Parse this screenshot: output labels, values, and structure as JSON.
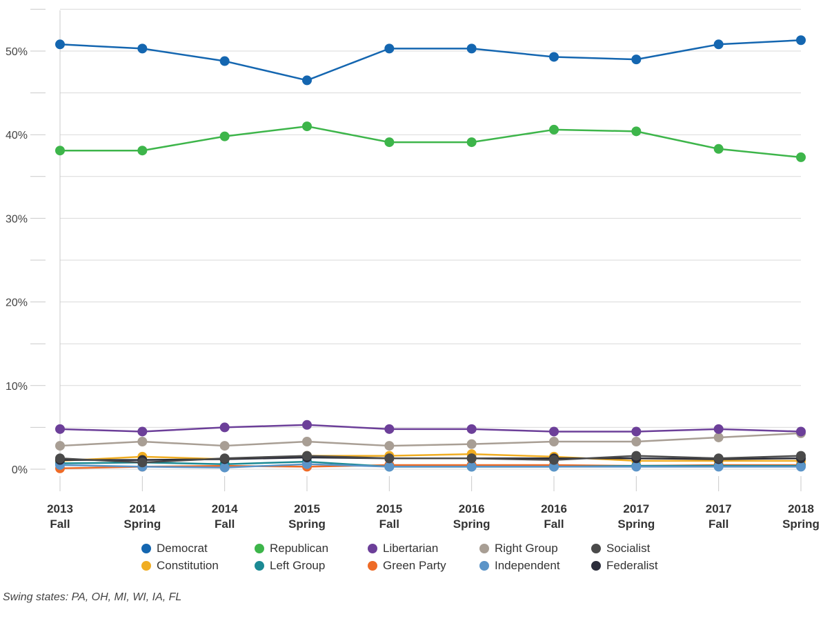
{
  "chart_data": {
    "type": "line",
    "categories": [
      [
        "2013",
        "Fall"
      ],
      [
        "2014",
        "Spring"
      ],
      [
        "2014",
        "Fall"
      ],
      [
        "2015",
        "Spring"
      ],
      [
        "2015",
        "Fall"
      ],
      [
        "2016",
        "Spring"
      ],
      [
        "2016",
        "Fall"
      ],
      [
        "2017",
        "Spring"
      ],
      [
        "2017",
        "Fall"
      ],
      [
        "2018",
        "Spring"
      ]
    ],
    "ylim": [
      0,
      55
    ],
    "y_ticks": [
      0,
      10,
      20,
      30,
      40,
      50
    ],
    "y_tick_labels": [
      "0%",
      "10%",
      "20%",
      "30%",
      "40%",
      "50%"
    ],
    "grid": "horizontal",
    "legend_position": "bottom",
    "series": [
      {
        "name": "Right Group",
        "color": "#a89e94",
        "values": [
          2.8,
          3.3,
          2.8,
          3.3,
          2.8,
          3.0,
          3.3,
          3.3,
          3.8,
          4.3
        ]
      },
      {
        "name": "Constitution",
        "color": "#f0ad22",
        "values": [
          1.0,
          1.5,
          1.2,
          1.6,
          1.6,
          1.8,
          1.5,
          1.0,
          1.0,
          1.0
        ]
      },
      {
        "name": "Green Party",
        "color": "#ee6b27",
        "values": [
          0.1,
          0.3,
          0.4,
          0.3,
          0.5,
          0.5,
          0.5,
          0.4,
          0.5,
          0.5
        ]
      },
      {
        "name": "Left Group",
        "color": "#1b8a94",
        "values": [
          0.7,
          0.8,
          0.6,
          0.9,
          0.3,
          0.3,
          0.3,
          0.4,
          0.4,
          0.4
        ]
      },
      {
        "name": "Independent",
        "color": "#5b94c8",
        "values": [
          0.5,
          0.3,
          0.2,
          0.6,
          0.3,
          0.3,
          0.3,
          0.3,
          0.3,
          0.3
        ]
      },
      {
        "name": "Federalist",
        "color": "#2b2d3a",
        "values": [
          1.1,
          1.1,
          1.2,
          1.4,
          1.3,
          1.3,
          1.3,
          1.3,
          1.2,
          1.3
        ]
      },
      {
        "name": "Socialist",
        "color": "#4a4a4a",
        "values": [
          1.3,
          0.8,
          1.3,
          1.6,
          1.3,
          1.3,
          1.1,
          1.6,
          1.3,
          1.6
        ]
      },
      {
        "name": "Libertarian",
        "color": "#6c3f99",
        "values": [
          4.8,
          4.5,
          5.0,
          5.3,
          4.8,
          4.8,
          4.5,
          4.5,
          4.8,
          4.5
        ]
      },
      {
        "name": "Republican",
        "color": "#3db54a",
        "values": [
          38.1,
          38.1,
          39.8,
          41.0,
          39.1,
          39.1,
          40.6,
          40.4,
          38.3,
          37.3
        ]
      },
      {
        "name": "Democrat",
        "color": "#1466b0",
        "values": [
          50.8,
          50.3,
          48.8,
          46.5,
          50.3,
          50.3,
          49.3,
          49.0,
          50.8,
          51.3
        ]
      }
    ],
    "legend_rows": [
      [
        "Democrat",
        "Republican",
        "Libertarian",
        "Right Group",
        "Socialist"
      ],
      [
        "Constitution",
        "Left Group",
        "Green Party",
        "Independent",
        "Federalist"
      ]
    ]
  },
  "footnote": "Swing states: PA, OH, MI, WI, IA, FL"
}
